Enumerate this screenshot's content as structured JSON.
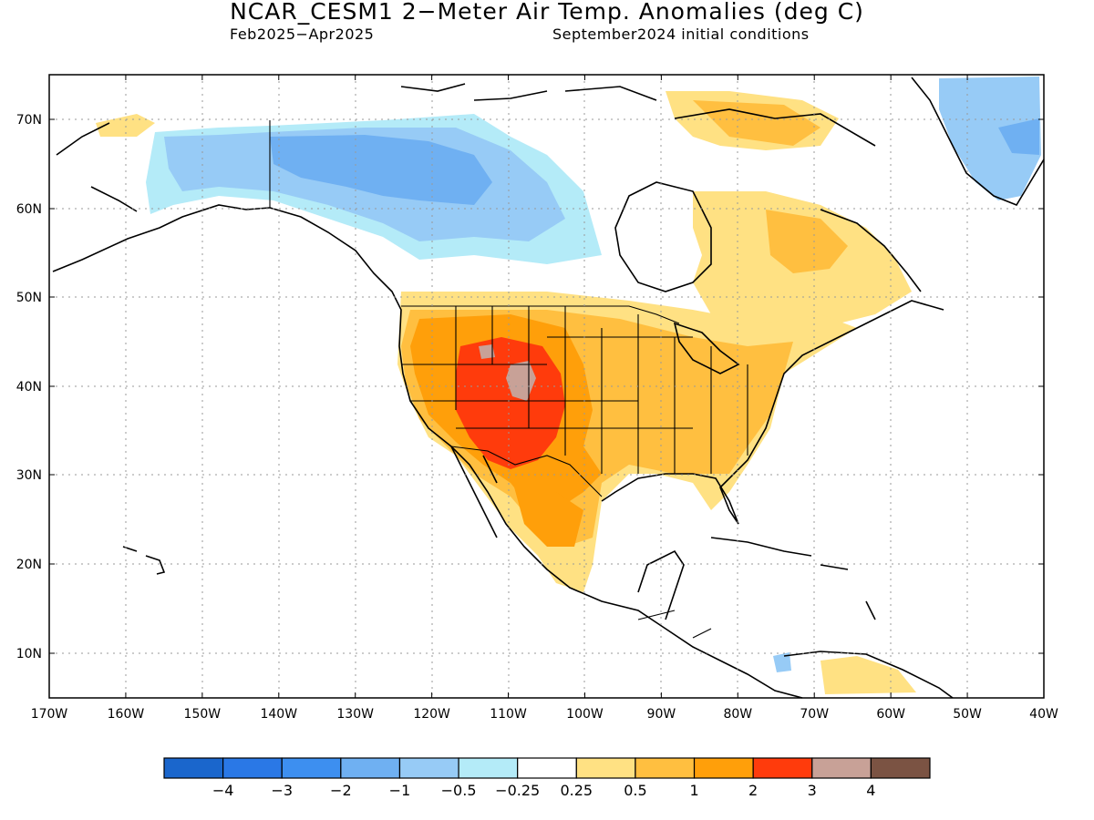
{
  "title": "NCAR_CESM1 2−Meter Air Temp. Anomalies (deg C)",
  "subtitle_left": "Feb2025−Apr2025",
  "subtitle_right": "September2024 initial conditions",
  "lon_labels": [
    "170W",
    "160W",
    "150W",
    "140W",
    "130W",
    "120W",
    "110W",
    "100W",
    "90W",
    "80W",
    "70W",
    "60W",
    "50W",
    "40W"
  ],
  "lat_labels": [
    "70N",
    "60N",
    "50N",
    "40N",
    "30N",
    "20N",
    "10N"
  ],
  "colorbar": {
    "colors": [
      "#1a66cc",
      "#2a78e6",
      "#3d8ff0",
      "#6fb0f2",
      "#97cbf6",
      "#b4ebf8",
      "#ffffff",
      "#ffe183",
      "#ffbf40",
      "#ff9f0a",
      "#ff3b0c",
      "#c8a197",
      "#7b5343"
    ],
    "labels": [
      "−4",
      "−3",
      "−2",
      "−1",
      "−0.5",
      "−0.25",
      "0.25",
      "0.5",
      "1",
      "2",
      "3",
      "4"
    ]
  },
  "colors": {
    "ocean": "#ffffff",
    "land": "#ffffff",
    "coast": "#000000",
    "grid": "#999999"
  }
}
